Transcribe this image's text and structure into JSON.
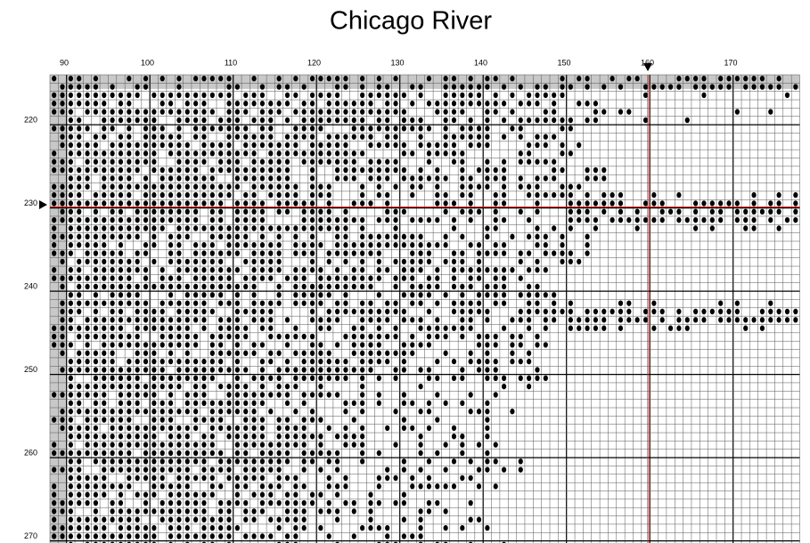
{
  "header": {
    "title": "Chicago River"
  },
  "columns": {
    "labels": [
      90,
      100,
      110,
      120,
      130,
      140,
      150,
      160,
      170
    ]
  },
  "rows": {
    "labels": [
      220,
      230,
      240,
      250,
      260,
      270
    ]
  }
}
